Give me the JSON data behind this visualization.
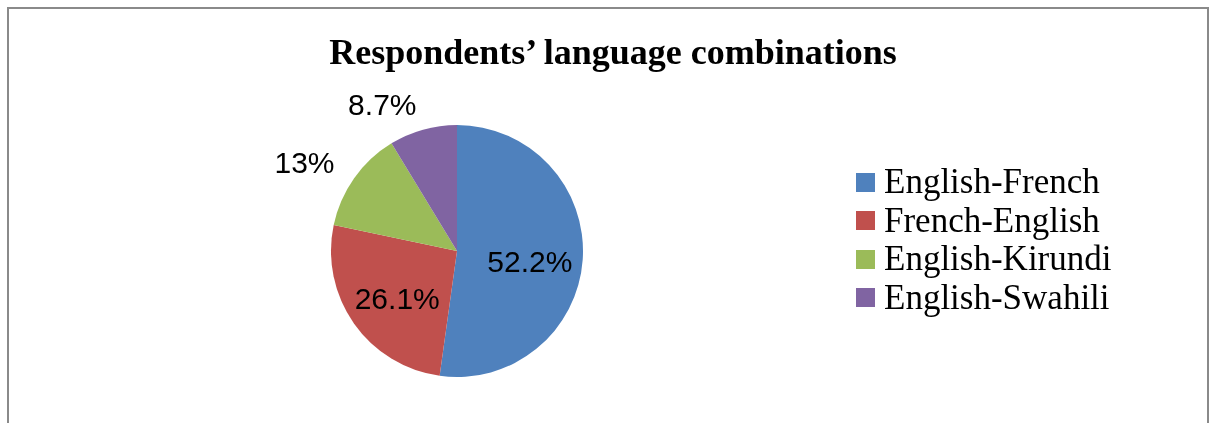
{
  "chart_data": {
    "type": "pie",
    "title": "Respondents’ language combinations",
    "categories": [
      "English-French",
      "French-English",
      "English-Kirundi",
      "English-Swahili"
    ],
    "values": [
      52.2,
      26.1,
      13,
      8.7
    ],
    "colors": [
      "#4f81bd",
      "#c0504d",
      "#9bbb59",
      "#8064a2"
    ],
    "value_labels": [
      "52.2%",
      "26.1%",
      "13%",
      "8.7%"
    ],
    "legend": "right"
  }
}
